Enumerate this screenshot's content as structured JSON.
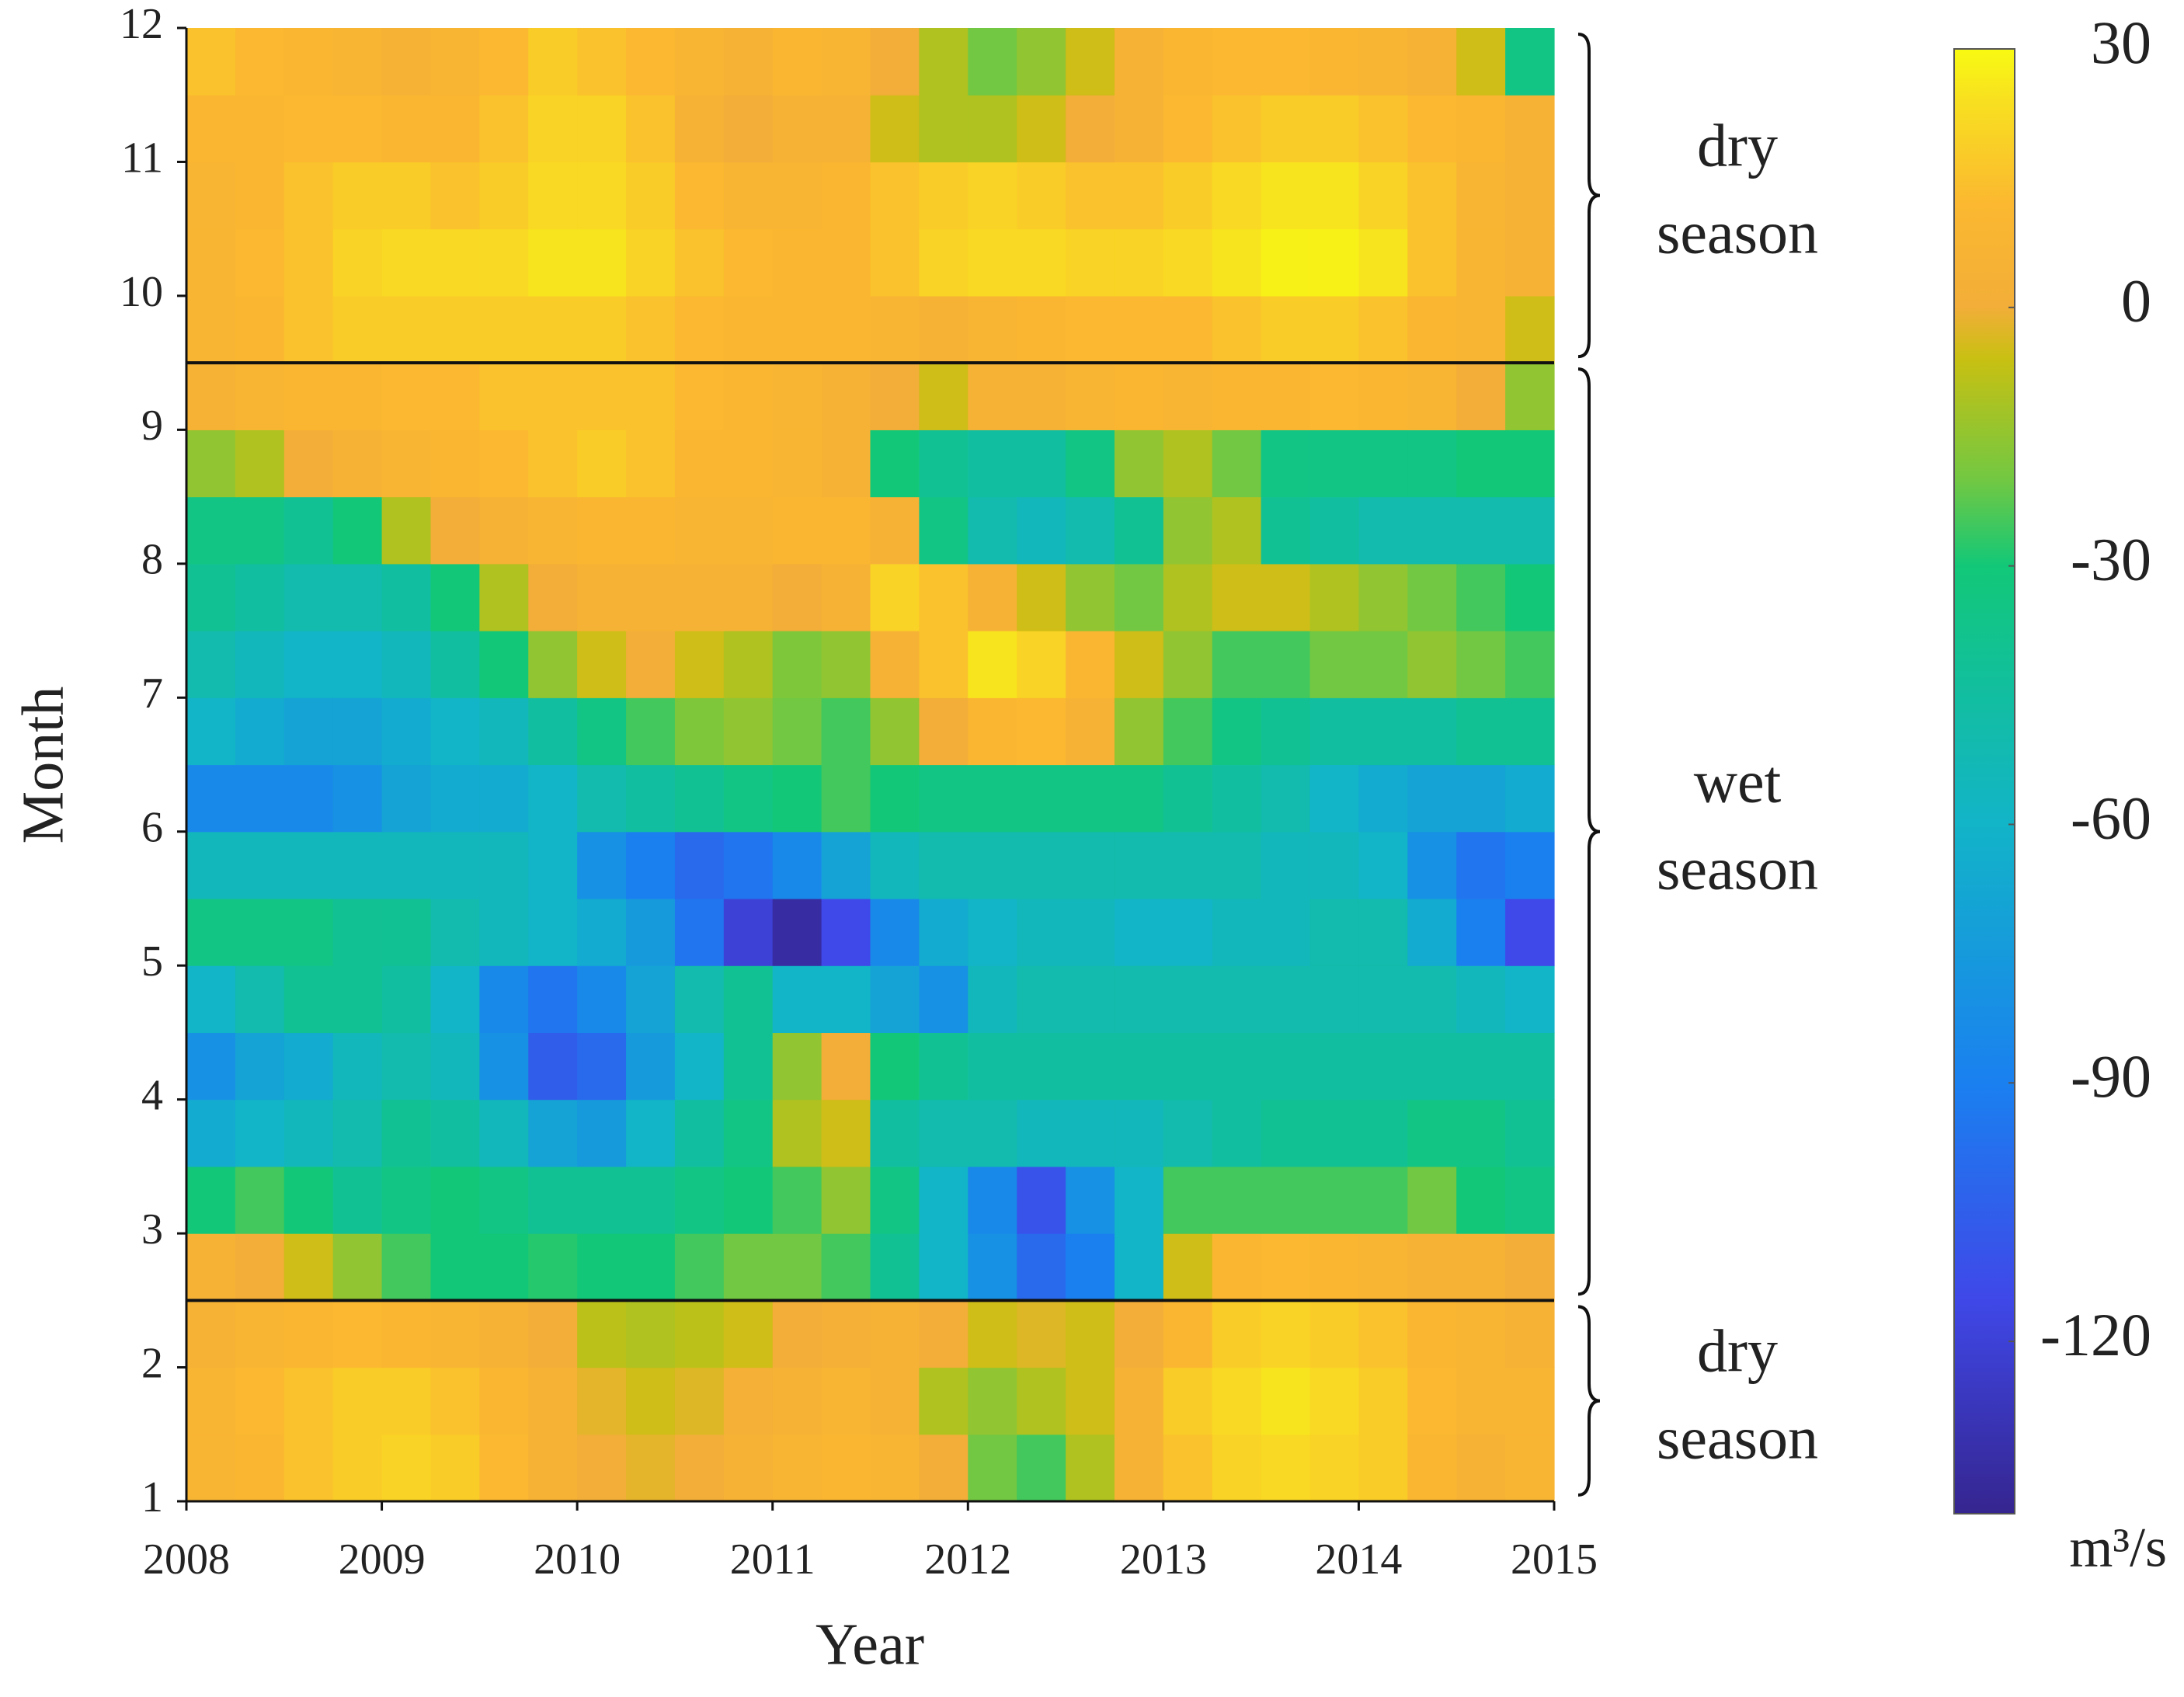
{
  "chart_data": {
    "type": "heatmap",
    "x_label": "Year",
    "y_label": "Month",
    "xlim": [
      2008,
      2015
    ],
    "xticks": [
      2008,
      2009,
      2010,
      2011,
      2012,
      2013,
      2014,
      2015
    ],
    "ylim": [
      1,
      12
    ],
    "yticks": [
      1,
      2,
      3,
      4,
      5,
      6,
      7,
      8,
      9,
      10,
      11,
      12
    ],
    "xbins": [
      2008,
      2008.25,
      2008.5,
      2008.75,
      2009,
      2009.25,
      2009.5,
      2009.75,
      2010,
      2010.25,
      2010.5,
      2010.75,
      2011,
      2011.25,
      2011.5,
      2011.75,
      2012,
      2012.25,
      2012.5,
      2012.75,
      2013,
      2013.25,
      2013.5,
      2013.75,
      2014,
      2014.25,
      2014.5,
      2014.75,
      2015
    ],
    "ybins": [
      1,
      1.5,
      2,
      2.5,
      3,
      3.5,
      4,
      4.5,
      5,
      5.5,
      6,
      6.5,
      7,
      7.5,
      8,
      8.5,
      9,
      9.5,
      10,
      10.5,
      11,
      11.5,
      12
    ],
    "z": [
      [
        8,
        10,
        15,
        18,
        20,
        18,
        12,
        5,
        0,
        -2,
        0,
        5,
        8,
        10,
        8,
        0,
        -20,
        -25,
        -10,
        5,
        15,
        20,
        22,
        20,
        18,
        10,
        5,
        8
      ],
      [
        8,
        12,
        15,
        18,
        18,
        15,
        10,
        5,
        -2,
        -5,
        -3,
        2,
        5,
        8,
        5,
        -10,
        -15,
        -10,
        -5,
        5,
        18,
        22,
        25,
        22,
        18,
        12,
        8,
        8
      ],
      [
        5,
        8,
        10,
        12,
        10,
        8,
        5,
        0,
        -8,
        -10,
        -8,
        -5,
        0,
        2,
        5,
        0,
        -5,
        -3,
        -5,
        0,
        10,
        18,
        20,
        18,
        15,
        10,
        8,
        5
      ],
      [
        5,
        0,
        -5,
        -15,
        -25,
        -30,
        -30,
        -28,
        -30,
        -30,
        -25,
        -20,
        -20,
        -25,
        -40,
        -60,
        -80,
        -100,
        -90,
        -60,
        -5,
        10,
        12,
        10,
        8,
        5,
        5,
        0
      ],
      [
        -30,
        -25,
        -30,
        -40,
        -35,
        -30,
        -35,
        -40,
        -40,
        -40,
        -35,
        -30,
        -25,
        -15,
        -35,
        -60,
        -85,
        -110,
        -80,
        -60,
        -25,
        -25,
        -25,
        -25,
        -25,
        -20,
        -30,
        -35
      ],
      [
        -65,
        -60,
        -55,
        -50,
        -40,
        -45,
        -55,
        -70,
        -75,
        -60,
        -45,
        -35,
        -10,
        -5,
        -45,
        -50,
        -50,
        -55,
        -55,
        -55,
        -50,
        -45,
        -40,
        -40,
        -40,
        -35,
        -35,
        -40
      ],
      [
        -80,
        -70,
        -65,
        -55,
        -50,
        -55,
        -80,
        -105,
        -100,
        -75,
        -60,
        -40,
        -15,
        0,
        -30,
        -40,
        -45,
        -45,
        -45,
        -45,
        -45,
        -45,
        -45,
        -45,
        -45,
        -45,
        -45,
        -45
      ],
      [
        -60,
        -50,
        -40,
        -40,
        -45,
        -60,
        -85,
        -95,
        -85,
        -70,
        -50,
        -40,
        -60,
        -60,
        -70,
        -80,
        -55,
        -50,
        -50,
        -50,
        -50,
        -50,
        -50,
        -50,
        -50,
        -50,
        -55,
        -60
      ],
      [
        -35,
        -35,
        -35,
        -40,
        -40,
        -50,
        -55,
        -60,
        -65,
        -75,
        -95,
        -120,
        -135,
        -115,
        -85,
        -65,
        -60,
        -55,
        -55,
        -60,
        -60,
        -55,
        -55,
        -50,
        -50,
        -65,
        -90,
        -115
      ],
      [
        -55,
        -55,
        -55,
        -55,
        -55,
        -55,
        -55,
        -60,
        -80,
        -90,
        -100,
        -95,
        -85,
        -70,
        -55,
        -50,
        -50,
        -50,
        -50,
        -50,
        -50,
        -50,
        -55,
        -55,
        -60,
        -80,
        -95,
        -90
      ],
      [
        -85,
        -85,
        -85,
        -80,
        -70,
        -65,
        -65,
        -60,
        -50,
        -45,
        -40,
        -35,
        -30,
        -25,
        -30,
        -35,
        -35,
        -35,
        -35,
        -35,
        -40,
        -45,
        -50,
        -60,
        -65,
        -70,
        -70,
        -65
      ],
      [
        -60,
        -65,
        -70,
        -70,
        -65,
        -60,
        -55,
        -45,
        -35,
        -25,
        -18,
        -15,
        -20,
        -25,
        -15,
        0,
        10,
        12,
        5,
        -15,
        -25,
        -35,
        -40,
        -45,
        -45,
        -45,
        -40,
        -40
      ],
      [
        -50,
        -55,
        -60,
        -60,
        -55,
        -45,
        -30,
        -15,
        -5,
        0,
        -5,
        -10,
        -18,
        -15,
        5,
        15,
        25,
        20,
        10,
        -5,
        -15,
        -25,
        -25,
        -20,
        -20,
        -15,
        -20,
        -25
      ],
      [
        -40,
        -45,
        -50,
        -50,
        -45,
        -30,
        -10,
        0,
        5,
        5,
        5,
        5,
        0,
        5,
        20,
        15,
        5,
        -5,
        -15,
        -20,
        -10,
        -5,
        -5,
        -10,
        -15,
        -20,
        -25,
        -30
      ],
      [
        -35,
        -35,
        -40,
        -30,
        -10,
        0,
        5,
        8,
        10,
        10,
        8,
        8,
        10,
        10,
        5,
        -35,
        -50,
        -55,
        -50,
        -40,
        -15,
        -10,
        -40,
        -45,
        -50,
        -50,
        -50,
        -50
      ],
      [
        -15,
        -10,
        0,
        5,
        8,
        10,
        12,
        15,
        18,
        15,
        10,
        10,
        8,
        5,
        -30,
        -40,
        -45,
        -45,
        -35,
        -15,
        -10,
        -20,
        -35,
        -35,
        -35,
        -35,
        -30,
        -30
      ],
      [
        5,
        8,
        10,
        10,
        12,
        12,
        15,
        15,
        15,
        15,
        12,
        10,
        8,
        5,
        0,
        -5,
        5,
        5,
        8,
        10,
        8,
        10,
        10,
        12,
        10,
        8,
        0,
        -15
      ],
      [
        8,
        10,
        15,
        18,
        18,
        18,
        18,
        18,
        18,
        15,
        12,
        10,
        10,
        10,
        8,
        5,
        8,
        10,
        12,
        12,
        12,
        15,
        18,
        18,
        15,
        10,
        8,
        -5
      ],
      [
        8,
        12,
        15,
        20,
        22,
        22,
        22,
        25,
        25,
        20,
        15,
        12,
        10,
        10,
        15,
        20,
        22,
        22,
        20,
        20,
        22,
        25,
        28,
        28,
        25,
        15,
        8,
        5
      ],
      [
        8,
        10,
        15,
        18,
        18,
        15,
        18,
        22,
        22,
        18,
        12,
        8,
        8,
        10,
        15,
        18,
        20,
        18,
        15,
        15,
        18,
        22,
        25,
        25,
        20,
        15,
        8,
        5
      ],
      [
        10,
        10,
        12,
        12,
        10,
        10,
        15,
        20,
        20,
        15,
        5,
        0,
        5,
        5,
        -5,
        -10,
        -10,
        -5,
        0,
        5,
        12,
        15,
        18,
        18,
        15,
        12,
        10,
        5
      ],
      [
        15,
        12,
        10,
        8,
        5,
        8,
        12,
        18,
        15,
        12,
        8,
        5,
        10,
        8,
        0,
        -10,
        -20,
        -15,
        -5,
        5,
        10,
        12,
        12,
        10,
        8,
        5,
        -5,
        -35
      ]
    ],
    "colorbar": {
      "label": "m³/s",
      "lim": [
        -140,
        30
      ],
      "ticks": [
        -120,
        -90,
        -60,
        -30,
        0,
        30
      ],
      "colormap": [
        {
          "value": -140,
          "color": "#35258f"
        },
        {
          "value": -115,
          "color": "#3f48e8"
        },
        {
          "value": -90,
          "color": "#1a80f0"
        },
        {
          "value": -60,
          "color": "#12b4c8"
        },
        {
          "value": -30,
          "color": "#12c878"
        },
        {
          "value": -20,
          "color": "#72c842"
        },
        {
          "value": -6,
          "color": "#c8c012"
        },
        {
          "value": 0,
          "color": "#f2ae38"
        },
        {
          "value": 12,
          "color": "#fbb830"
        },
        {
          "value": 24,
          "color": "#f8e020"
        },
        {
          "value": 30,
          "color": "#f8fa12"
        }
      ]
    },
    "hlines": [
      2.5,
      9.5
    ],
    "annotations": [
      {
        "lines": [
          "dry",
          "season"
        ],
        "span": [
          9.5,
          12
        ]
      },
      {
        "lines": [
          "wet",
          "season"
        ],
        "span": [
          2.5,
          9.5
        ]
      },
      {
        "lines": [
          "dry",
          "season"
        ],
        "span": [
          1,
          2.5
        ]
      }
    ]
  }
}
